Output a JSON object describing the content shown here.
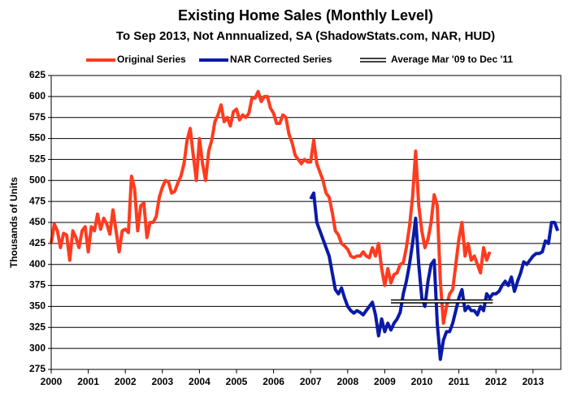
{
  "chart_data": {
    "type": "line",
    "title": "Existing Home Sales (Monthly Level)",
    "subtitle": "To Sep 2013, Not Annnualized, SA (ShadowStats.com, NAR, HUD)",
    "y_label": "Thousands of Units",
    "xlim": [
      2000,
      2013.75
    ],
    "xticks": [
      2000,
      2001,
      2002,
      2003,
      2004,
      2005,
      2006,
      2007,
      2008,
      2009,
      2010,
      2011,
      2012,
      2013
    ],
    "ylim": [
      275,
      625
    ],
    "yticks": [
      275,
      300,
      325,
      350,
      375,
      400,
      425,
      450,
      475,
      500,
      525,
      550,
      575,
      600,
      625
    ],
    "grid": true,
    "series": [
      {
        "name": "Original Series",
        "color": "#ff3b1f",
        "x": [
          2000,
          2000.083,
          2000.167,
          2000.25,
          2000.333,
          2000.417,
          2000.5,
          2000.583,
          2000.667,
          2000.75,
          2000.833,
          2000.917,
          2001,
          2001.083,
          2001.167,
          2001.25,
          2001.333,
          2001.417,
          2001.5,
          2001.583,
          2001.667,
          2001.75,
          2001.833,
          2001.917,
          2002,
          2002.083,
          2002.167,
          2002.25,
          2002.333,
          2002.417,
          2002.5,
          2002.583,
          2002.667,
          2002.75,
          2002.833,
          2002.917,
          2003,
          2003.083,
          2003.167,
          2003.25,
          2003.333,
          2003.417,
          2003.5,
          2003.583,
          2003.667,
          2003.75,
          2003.833,
          2003.917,
          2004,
          2004.083,
          2004.167,
          2004.25,
          2004.333,
          2004.417,
          2004.5,
          2004.583,
          2004.667,
          2004.75,
          2004.833,
          2004.917,
          2005,
          2005.083,
          2005.167,
          2005.25,
          2005.333,
          2005.417,
          2005.5,
          2005.583,
          2005.667,
          2005.75,
          2005.833,
          2005.917,
          2006,
          2006.083,
          2006.167,
          2006.25,
          2006.333,
          2006.417,
          2006.5,
          2006.583,
          2006.667,
          2006.75,
          2006.833,
          2006.917,
          2007,
          2007.083,
          2007.167,
          2007.25,
          2007.333,
          2007.417,
          2007.5,
          2007.583,
          2007.667,
          2007.75,
          2007.833,
          2007.917,
          2008,
          2008.083,
          2008.167,
          2008.25,
          2008.333,
          2008.417,
          2008.5,
          2008.583,
          2008.667,
          2008.75,
          2008.833,
          2008.917,
          2009,
          2009.083,
          2009.167,
          2009.25,
          2009.333,
          2009.417,
          2009.5,
          2009.583,
          2009.667,
          2009.75,
          2009.833,
          2009.917,
          2010,
          2010.083,
          2010.167,
          2010.25,
          2010.333,
          2010.417,
          2010.5,
          2010.583,
          2010.667,
          2010.75,
          2010.833,
          2010.917,
          2011,
          2011.083,
          2011.167,
          2011.25,
          2011.333,
          2011.417,
          2011.5,
          2011.583,
          2011.667,
          2011.75,
          2011.833
        ],
        "values": [
          425,
          448,
          440,
          420,
          437,
          435,
          405,
          440,
          432,
          420,
          440,
          445,
          415,
          445,
          440,
          460,
          442,
          455,
          448,
          436,
          465,
          440,
          415,
          440,
          442,
          438,
          505,
          490,
          440,
          470,
          473,
          432,
          450,
          450,
          457,
          480,
          492,
          500,
          498,
          485,
          487,
          497,
          505,
          520,
          548,
          562,
          530,
          500,
          550,
          520,
          500,
          535,
          548,
          570,
          578,
          590,
          570,
          575,
          565,
          582,
          585,
          572,
          578,
          575,
          580,
          598,
          598,
          606,
          594,
          600,
          600,
          586,
          580,
          568,
          568,
          578,
          575,
          555,
          545,
          530,
          525,
          520,
          525,
          522,
          522,
          548,
          520,
          510,
          500,
          485,
          480,
          462,
          440,
          435,
          425,
          422,
          418,
          410,
          408,
          410,
          410,
          415,
          410,
          408,
          420,
          410,
          425,
          395,
          375,
          395,
          378,
          388,
          390,
          400,
          402,
          420,
          445,
          480,
          535,
          470,
          440,
          420,
          430,
          450,
          483,
          470,
          380,
          330,
          350,
          365,
          370,
          400,
          430,
          450,
          410,
          425,
          405,
          410,
          400,
          390,
          420,
          405,
          415
        ]
      },
      {
        "name": "NAR Corrected Series",
        "color": "#0a1aa8",
        "x": [
          2007,
          2007.083,
          2007.167,
          2007.25,
          2007.333,
          2007.417,
          2007.5,
          2007.583,
          2007.667,
          2007.75,
          2007.833,
          2007.917,
          2008,
          2008.083,
          2008.167,
          2008.25,
          2008.333,
          2008.417,
          2008.5,
          2008.583,
          2008.667,
          2008.75,
          2008.833,
          2008.917,
          2009,
          2009.083,
          2009.167,
          2009.25,
          2009.333,
          2009.417,
          2009.5,
          2009.583,
          2009.667,
          2009.75,
          2009.833,
          2009.917,
          2010,
          2010.083,
          2010.167,
          2010.25,
          2010.333,
          2010.417,
          2010.5,
          2010.583,
          2010.667,
          2010.75,
          2010.833,
          2010.917,
          2011,
          2011.083,
          2011.167,
          2011.25,
          2011.333,
          2011.417,
          2011.5,
          2011.583,
          2011.667,
          2011.75,
          2011.833,
          2011.917,
          2012,
          2012.083,
          2012.167,
          2012.25,
          2012.333,
          2012.417,
          2012.5,
          2012.583,
          2012.667,
          2012.75,
          2012.833,
          2012.917,
          2013,
          2013.083,
          2013.167,
          2013.25,
          2013.333,
          2013.417,
          2013.5,
          2013.583,
          2013.667
        ],
        "values": [
          478,
          485,
          450,
          440,
          430,
          420,
          410,
          390,
          370,
          365,
          372,
          360,
          350,
          345,
          342,
          345,
          343,
          340,
          345,
          350,
          355,
          340,
          315,
          335,
          320,
          330,
          322,
          330,
          335,
          343,
          365,
          380,
          400,
          425,
          455,
          400,
          360,
          350,
          380,
          400,
          405,
          330,
          287,
          310,
          320,
          320,
          330,
          345,
          360,
          370,
          345,
          350,
          345,
          345,
          340,
          350,
          345,
          365,
          360,
          365,
          365,
          368,
          375,
          380,
          375,
          385,
          368,
          380,
          390,
          403,
          400,
          405,
          410,
          413,
          413,
          415,
          428,
          425,
          450,
          450,
          440
        ]
      },
      {
        "name": "Average Mar '09 to Dec '11",
        "color": "#000000",
        "line_style": "double",
        "x": [
          2009.167,
          2011.917
        ],
        "values": [
          356,
          356
        ]
      }
    ]
  }
}
